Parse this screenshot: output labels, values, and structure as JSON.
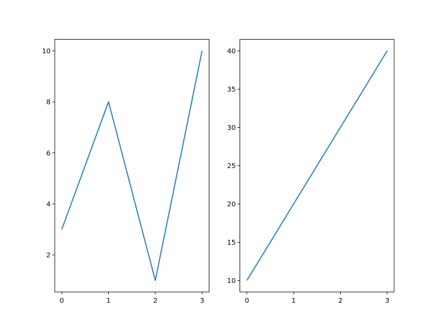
{
  "chart_data": [
    {
      "type": "line",
      "x": [
        0,
        1,
        2,
        3
      ],
      "y": [
        3,
        8,
        1,
        10
      ],
      "xlim": [
        -0.15,
        3.15
      ],
      "ylim": [
        0.55,
        10.45
      ],
      "xticks": [
        "0",
        "1",
        "2",
        "3"
      ],
      "yticks": [
        "2",
        "4",
        "6",
        "8",
        "10"
      ],
      "grid": false,
      "color": "#1f77b4"
    },
    {
      "type": "line",
      "x": [
        0,
        1,
        2,
        3
      ],
      "y": [
        10,
        20,
        30,
        40
      ],
      "xlim": [
        -0.15,
        3.15
      ],
      "ylim": [
        8.5,
        41.5
      ],
      "xticks": [
        "0",
        "1",
        "2",
        "3"
      ],
      "yticks": [
        "10",
        "15",
        "20",
        "25",
        "30",
        "35",
        "40"
      ],
      "grid": false,
      "color": "#1f77b4"
    }
  ]
}
